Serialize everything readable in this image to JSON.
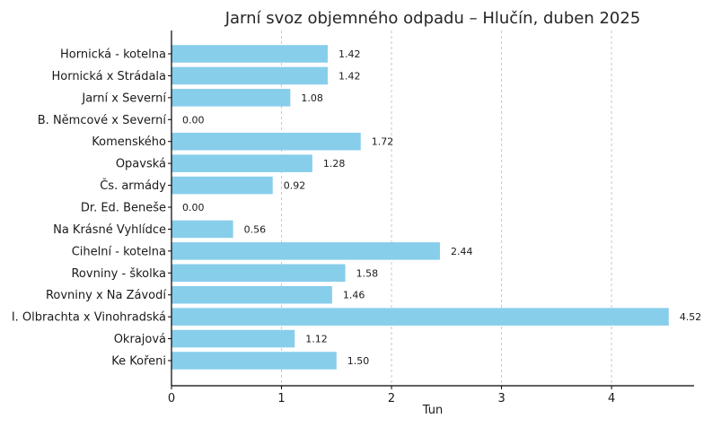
{
  "chart_data": {
    "type": "bar",
    "orientation": "horizontal",
    "title": "Jarní svoz objemného odpadu – Hlučín, duben 2025",
    "xlabel": "Tun",
    "ylabel": "",
    "xlim": [
      0,
      4.75
    ],
    "xticks": [
      "0",
      "1",
      "2",
      "3",
      "4"
    ],
    "grid": true,
    "bar_color": "#87ceeb",
    "categories": [
      "Hornická - kotelna",
      "Hornická x Strádala",
      "Jarní x Severní",
      "B. Němcové x Severní",
      "Komenského",
      "Opavská",
      "Čs. armády",
      "Dr. Ed. Beneše",
      "Na Krásné Vyhlídce",
      "Cihelní - kotelna",
      "Rovniny - školka",
      "Rovniny x Na Závodí",
      "I. Olbrachta x Vinohradská",
      "Okrajová",
      "Ke Kořeni"
    ],
    "values": [
      1.42,
      1.42,
      1.08,
      0.0,
      1.72,
      1.28,
      0.92,
      0.0,
      0.56,
      2.44,
      1.58,
      1.46,
      4.52,
      1.12,
      1.5
    ],
    "value_labels": [
      "1.42",
      "1.42",
      "1.08",
      "0.00",
      "1.72",
      "1.28",
      "0.92",
      "0.00",
      "0.56",
      "2.44",
      "1.58",
      "1.46",
      "4.52",
      "1.12",
      "1.50"
    ]
  }
}
